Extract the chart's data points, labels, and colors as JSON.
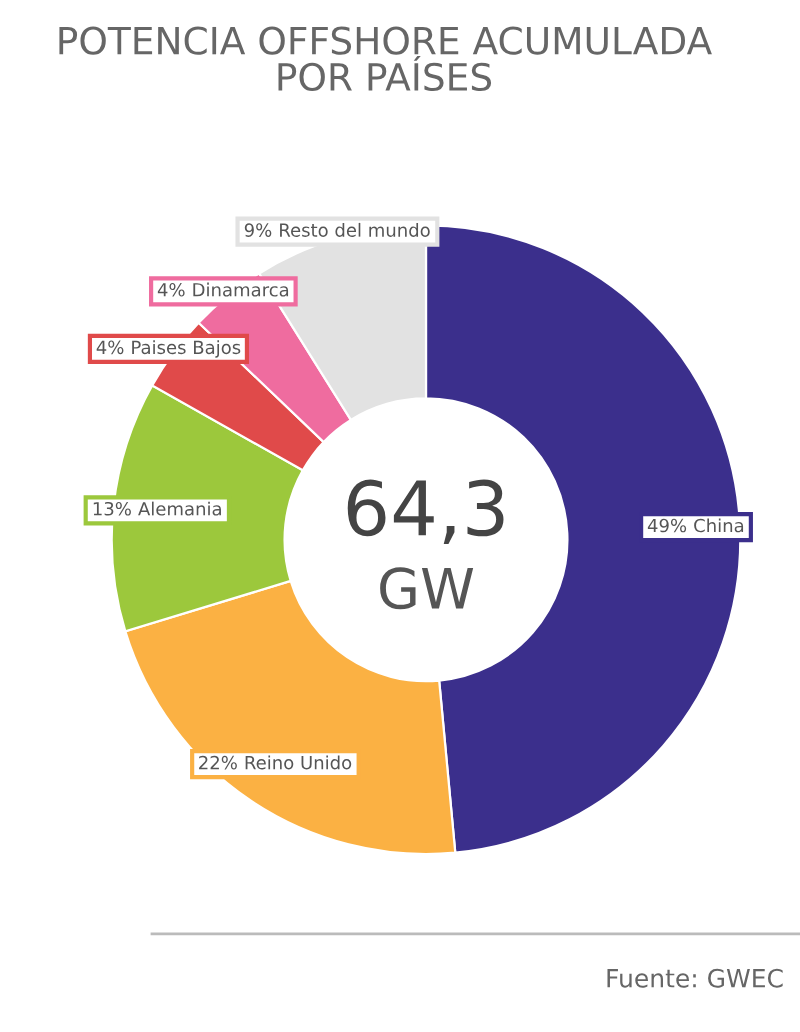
{
  "chart_data": {
    "type": "donut",
    "title": "POTENCIA OFFSHORE ACUMULADA\nPOR PAÍSES",
    "categories": [
      "China",
      "Reino Unido",
      "Alemania",
      "Paises Bajos",
      "Dinamarca",
      "Resto del mundo"
    ],
    "values": [
      49,
      22,
      13,
      4,
      4,
      9
    ],
    "colors": [
      "#3b2f8c",
      "#fbb143",
      "#9cc83c",
      "#e04a4a",
      "#ef6c9f",
      "#e2e2e2"
    ],
    "value_labels": [
      "49%",
      "22%",
      "13%",
      "4%",
      "4%",
      "9%"
    ],
    "annotations": [
      "64,3",
      "GW",
      "Fuente: GWEC"
    ],
    "legend": false
  }
}
